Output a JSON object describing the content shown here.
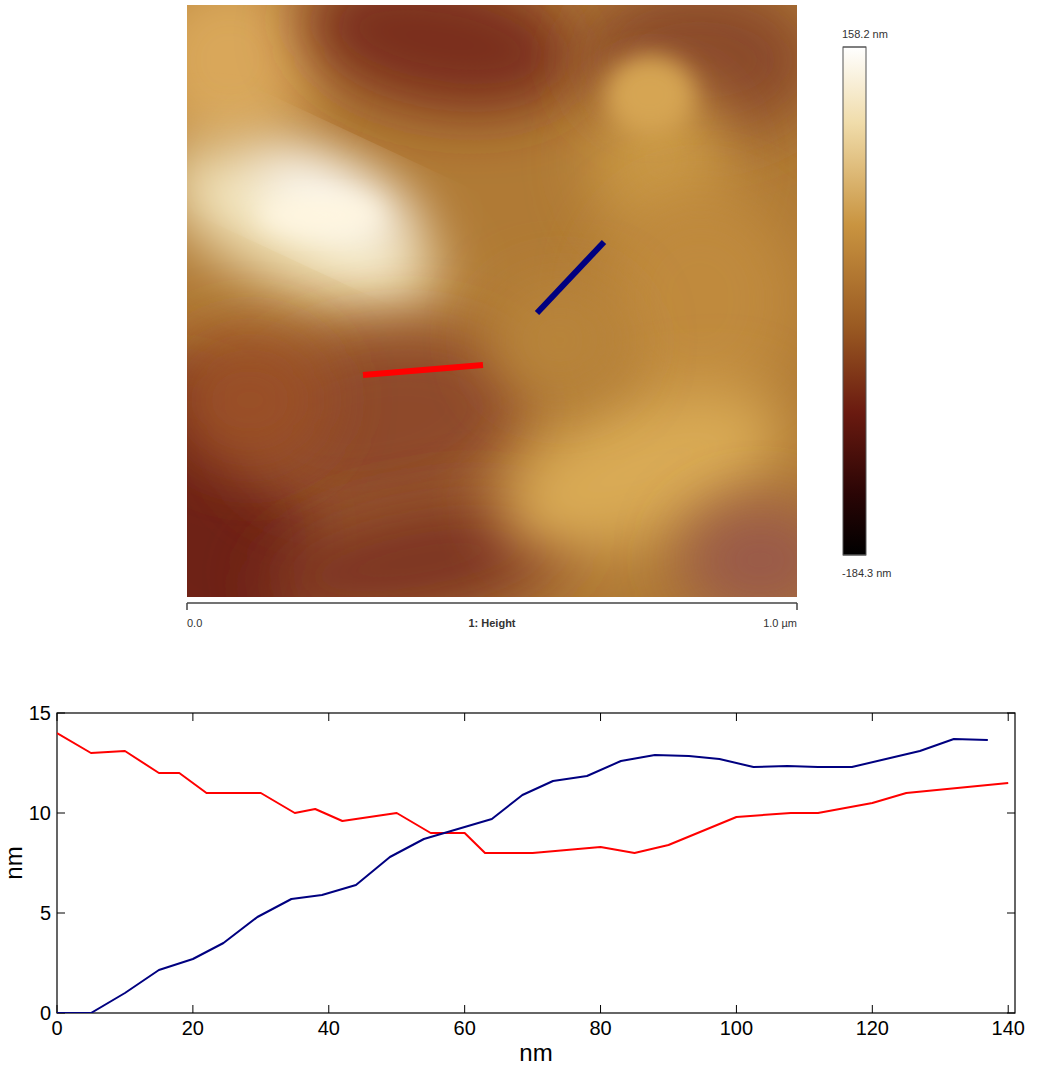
{
  "chart_data": [
    {
      "type": "image",
      "x_label": "1: Height",
      "xlim": [
        0,
        1
      ],
      "xticks": [
        {
          "value": 0,
          "label": "0.0"
        },
        {
          "value": 1,
          "label": "1.0 µm"
        }
      ],
      "colorbar": {
        "range": [
          -184.3,
          158.2
        ],
        "ticks": [
          {
            "value": 158.2,
            "label": "158.2 nm"
          },
          {
            "value": -184.3,
            "label": "-184.3 nm"
          }
        ]
      }
    },
    {
      "type": "line",
      "x_label": "nm",
      "y_label": "nm",
      "xlim": [
        0,
        141
      ],
      "ylim": [
        0,
        15
      ],
      "xticks": [
        0,
        20,
        40,
        60,
        80,
        100,
        120,
        140
      ],
      "yticks": [
        0,
        5,
        10,
        15
      ],
      "series": [
        {
          "color": "#ff0000",
          "x": [
            0,
            5,
            10,
            15,
            18,
            22,
            30,
            35,
            38,
            42,
            50,
            55,
            60,
            63,
            70,
            80,
            85,
            90,
            100,
            108,
            112,
            120,
            125,
            140
          ],
          "values": [
            14,
            13,
            13.1,
            12,
            12,
            11,
            11,
            10,
            10.2,
            9.6,
            10,
            9,
            9,
            8,
            8,
            8.3,
            8,
            8.4,
            9.8,
            10,
            10,
            10.5,
            11,
            11.5
          ]
        },
        {
          "color": "#000080",
          "x": [
            0,
            5,
            10,
            15,
            20,
            24.5,
            29.5,
            34.5,
            39,
            44,
            49,
            54,
            59,
            64,
            68.5,
            73,
            78,
            83,
            88,
            93,
            97.5,
            102.5,
            107.5,
            112,
            117,
            122,
            127,
            132,
            137
          ],
          "values": [
            0,
            0,
            1,
            2.15,
            2.7,
            3.5,
            4.8,
            5.7,
            5.9,
            6.4,
            7.8,
            8.7,
            9.2,
            9.7,
            10.9,
            11.6,
            11.85,
            12.6,
            12.9,
            12.85,
            12.7,
            12.3,
            12.35,
            12.3,
            12.3,
            12.7,
            13.1,
            13.7,
            13.65
          ]
        }
      ]
    }
  ]
}
